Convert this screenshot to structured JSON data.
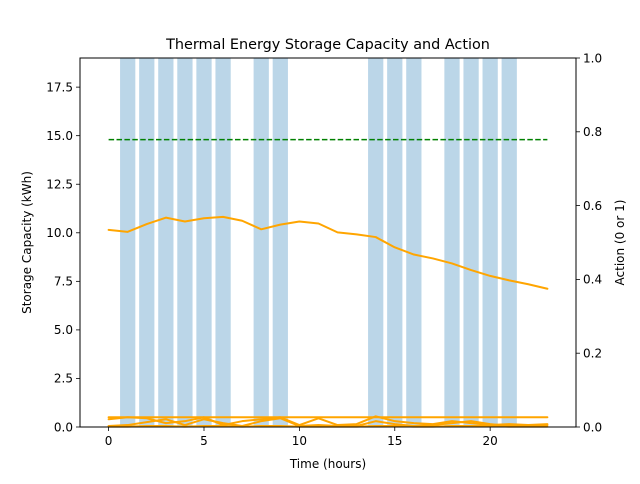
{
  "chart_data": {
    "type": "line",
    "title": "Thermal Energy Storage Capacity and Action",
    "xlabel": "Time (hours)",
    "ylabel": "Storage Capacity (kWh)",
    "y2label": "Action (0 or 1)",
    "xlim": [
      -1.5,
      24.5
    ],
    "ylim": [
      0,
      19
    ],
    "y2lim": [
      0,
      1
    ],
    "xticks": [
      0,
      5,
      10,
      15,
      20
    ],
    "xtick_labels": [
      "0",
      "5",
      "10",
      "15",
      "20"
    ],
    "yticks": [
      0,
      2.5,
      5,
      7.5,
      10,
      12.5,
      15,
      17.5
    ],
    "ytick_labels": [
      "0.0",
      "2.5",
      "5.0",
      "7.5",
      "10.0",
      "12.5",
      "15.0",
      "17.5"
    ],
    "y2ticks": [
      0,
      0.2,
      0.4,
      0.6,
      0.8,
      1.0
    ],
    "y2tick_labels": [
      "0.0",
      "0.2",
      "0.4",
      "0.6",
      "0.8",
      "1.0"
    ],
    "grid": false,
    "colors": {
      "capacity": "#ffa500",
      "limit": "#008000",
      "action": "#1f77b4"
    },
    "action_bars": {
      "x": [
        0,
        1,
        2,
        3,
        4,
        5,
        6,
        7,
        8,
        9,
        10,
        11,
        12,
        13,
        14,
        15,
        16,
        17,
        18,
        19,
        20,
        21,
        22,
        23
      ],
      "values": [
        0,
        1,
        1,
        1,
        1,
        1,
        1,
        0,
        1,
        1,
        0,
        0,
        0,
        0,
        1,
        1,
        1,
        0,
        1,
        1,
        1,
        1,
        0,
        0
      ],
      "bar_width": 0.8,
      "alpha": 0.3
    },
    "limit_line": {
      "x": [
        0,
        23
      ],
      "y": [
        14.8,
        14.8
      ],
      "style": "dashed"
    },
    "series": [
      {
        "x": [
          0,
          1,
          2,
          3,
          4,
          5,
          6,
          7,
          8,
          9,
          10,
          11,
          12,
          13,
          14,
          15,
          16,
          17,
          18,
          19,
          20,
          21,
          22,
          23
        ],
        "values": [
          10.15,
          10.05,
          10.45,
          10.78,
          10.58,
          10.75,
          10.82,
          10.62,
          10.18,
          10.42,
          10.58,
          10.48,
          10.02,
          9.92,
          9.78,
          9.25,
          8.88,
          8.68,
          8.42,
          8.08,
          7.78,
          7.55,
          7.35,
          7.12
        ]
      },
      {
        "x": [
          0,
          1,
          2,
          3,
          4,
          5,
          6,
          7,
          8,
          9,
          10,
          11,
          12,
          13,
          14,
          15,
          16,
          17,
          18,
          19,
          20,
          21,
          22,
          23
        ],
        "values": [
          0.5,
          0.5,
          0.5,
          0.5,
          0.5,
          0.5,
          0.5,
          0.5,
          0.5,
          0.5,
          0.5,
          0.5,
          0.5,
          0.5,
          0.5,
          0.5,
          0.5,
          0.5,
          0.5,
          0.5,
          0.5,
          0.5,
          0.5,
          0.5
        ]
      },
      {
        "x": [
          0,
          1,
          2,
          3,
          4,
          5,
          6,
          7,
          8,
          9,
          10,
          11,
          12,
          13,
          14,
          15,
          16,
          17,
          18,
          19,
          20,
          21,
          22,
          23
        ],
        "values": [
          0.4,
          0.5,
          0.45,
          0.2,
          0.3,
          0.5,
          0.1,
          0.3,
          0.4,
          0.5,
          0.1,
          0.45,
          0.1,
          0.15,
          0.55,
          0.3,
          0.2,
          0.15,
          0.3,
          0.2,
          0.1,
          0.15,
          0.1,
          0.15
        ]
      },
      {
        "x": [
          0,
          1,
          2,
          3,
          4,
          5,
          6,
          7,
          8,
          9,
          10,
          11,
          12,
          13,
          14,
          15,
          16,
          17,
          18,
          19,
          20,
          21,
          22,
          23
        ],
        "values": [
          0.05,
          0.1,
          0.25,
          0.4,
          0.1,
          0.4,
          0.2,
          0.05,
          0.3,
          0.45,
          0.05,
          0.1,
          0.05,
          0.05,
          0.3,
          0.15,
          0.05,
          0.1,
          0.2,
          0.3,
          0.15,
          0.05,
          0.05,
          0.1
        ]
      },
      {
        "x": [
          0,
          1,
          2,
          3,
          4,
          5,
          6,
          7,
          8,
          9,
          10,
          11,
          12,
          13,
          14,
          15,
          16,
          17,
          18,
          19,
          20,
          21,
          22,
          23
        ],
        "values": [
          0.02,
          0.02,
          0.05,
          0.05,
          0.02,
          0.05,
          0.05,
          0.02,
          0.05,
          0.05,
          0.02,
          0.02,
          0.02,
          0.02,
          0.05,
          0.05,
          0.02,
          0.02,
          0.05,
          0.05,
          0.05,
          0.02,
          0.02,
          0.02
        ]
      }
    ]
  }
}
